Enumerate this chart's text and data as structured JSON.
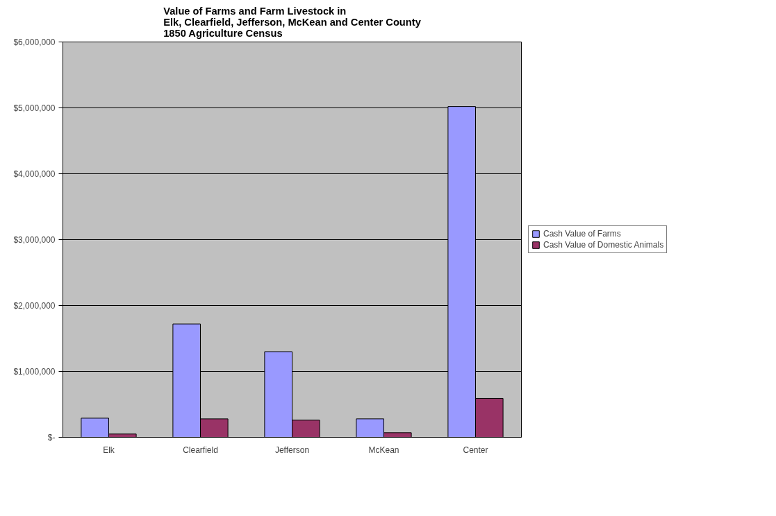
{
  "chart_data": {
    "type": "bar",
    "title": "Value of Farms and Farm Livestock in\nElk, Clearfield, Jefferson, McKean and Center County\n1850 Agriculture Census",
    "categories": [
      "Elk",
      "Clearfield",
      "Jefferson",
      "McKean",
      "Center"
    ],
    "series": [
      {
        "name": "Cash Value of Farms",
        "color": "#9999ff",
        "values": [
          290000,
          1720000,
          1300000,
          280000,
          5020000
        ]
      },
      {
        "name": "Cash Value of Domestic Animals",
        "color": "#993366",
        "values": [
          50000,
          280000,
          260000,
          70000,
          590000
        ]
      }
    ],
    "ylim": [
      0,
      6000000
    ],
    "yticks": [
      {
        "value": 0,
        "label": "$-"
      },
      {
        "value": 1000000,
        "label": "$1,000,000"
      },
      {
        "value": 2000000,
        "label": "$2,000,000"
      },
      {
        "value": 3000000,
        "label": "$3,000,000"
      },
      {
        "value": 4000000,
        "label": "$4,000,000"
      },
      {
        "value": 5000000,
        "label": "$5,000,000"
      },
      {
        "value": 6000000,
        "label": "$6,000,000"
      }
    ],
    "grid": "y",
    "legend": "right"
  }
}
